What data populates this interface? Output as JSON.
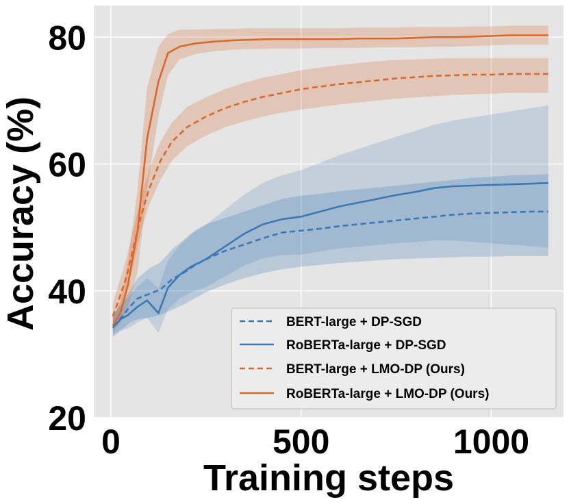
{
  "chart_data": {
    "type": "line",
    "xlabel": "Training steps",
    "ylabel": "Accuracy (%)",
    "xlim": [
      -45,
      1190
    ],
    "ylim": [
      20,
      85
    ],
    "xticks": [
      0,
      500,
      1000
    ],
    "yticks": [
      20,
      40,
      60,
      80
    ],
    "grid": true,
    "legend_position": "bottom-right",
    "series": [
      {
        "name": "BERT-large + DP-SGD",
        "color": "#3a78b5",
        "dash": "dashed",
        "x": [
          5,
          30,
          50,
          70,
          100,
          130,
          160,
          190,
          220,
          250,
          300,
          350,
          400,
          450,
          500,
          550,
          600,
          650,
          700,
          750,
          800,
          850,
          900,
          950,
          1000,
          1050,
          1100,
          1150
        ],
        "y": [
          34.5,
          36,
          37.5,
          38.8,
          39.5,
          40.2,
          41.8,
          42.8,
          44,
          45,
          46.3,
          47.3,
          48.3,
          49.2,
          49.5,
          49.8,
          50.2,
          50.5,
          50.8,
          51.1,
          51.4,
          51.7,
          52,
          52.2,
          52.3,
          52.4,
          52.5,
          52.5
        ],
        "lower": [
          33,
          34,
          35,
          35.5,
          35.8,
          36.2,
          37,
          37.8,
          38.8,
          39.8,
          41,
          42,
          42.8,
          43.4,
          43.8,
          44.1,
          44.4,
          44.6,
          44.8,
          45,
          45.1,
          45.2,
          45.3,
          45.4,
          45.4,
          45.5,
          45.5,
          45.5
        ],
        "upper": [
          36,
          38,
          40,
          42,
          43.5,
          44.5,
          46.5,
          48,
          49.5,
          50.5,
          51.5,
          52.5,
          53.5,
          54.5,
          55,
          55.3,
          55.7,
          56,
          56.3,
          56.6,
          56.9,
          57.2,
          57.5,
          57.8,
          58,
          58.2,
          58.3,
          58.4
        ]
      },
      {
        "name": "RoBERTa-large + DP-SGD",
        "color": "#3a78b5",
        "dash": "solid",
        "x": [
          5,
          25,
          45,
          70,
          95,
          125,
          150,
          180,
          210,
          250,
          300,
          350,
          400,
          450,
          500,
          550,
          600,
          650,
          700,
          750,
          800,
          850,
          900,
          950,
          1000,
          1050,
          1100,
          1150
        ],
        "y": [
          34.2,
          35.5,
          36.2,
          37.5,
          38.5,
          36.5,
          40.5,
          42.5,
          43.8,
          45,
          47,
          49,
          50.5,
          51.3,
          51.7,
          52.5,
          53.3,
          53.9,
          54.5,
          55.1,
          55.6,
          56.2,
          56.5,
          56.6,
          56.7,
          56.8,
          56.9,
          57
        ]
      },
      {
        "name": "BERT-large + LMO-DP (Ours)",
        "color": "#d9692b",
        "dash": "dashed",
        "x": [
          5,
          20,
          40,
          60,
          80,
          100,
          130,
          160,
          200,
          250,
          300,
          350,
          400,
          450,
          500,
          550,
          600,
          650,
          700,
          750,
          800,
          850,
          900,
          950,
          1000,
          1050,
          1100,
          1150
        ],
        "y": [
          36,
          38.5,
          42,
          47,
          52,
          56,
          60.5,
          63.5,
          65.8,
          67.5,
          68.8,
          69.8,
          70.6,
          71.2,
          71.8,
          72.2,
          72.6,
          72.9,
          73.2,
          73.5,
          73.7,
          73.9,
          74,
          74.1,
          74.1,
          74.2,
          74.2,
          74.2
        ],
        "lower": [
          34,
          36,
          39.5,
          44.5,
          49.5,
          53.5,
          57.5,
          60.5,
          62.8,
          64.5,
          65.8,
          66.7,
          67.5,
          68.1,
          68.6,
          69,
          69.4,
          69.7,
          70,
          70.3,
          70.5,
          70.7,
          70.9,
          71,
          71.1,
          71.2,
          71.2,
          71.2
        ],
        "upper": [
          38,
          41,
          45,
          50,
          55,
          59,
          63.5,
          66.5,
          69,
          70.5,
          71.8,
          72.8,
          73.6,
          74.2,
          74.8,
          75.2,
          75.6,
          75.9,
          76.2,
          76.4,
          76.5,
          76.6,
          76.7,
          76.7,
          76.7,
          76.7,
          76.7,
          76.7
        ]
      },
      {
        "name": "RoBERTa-large + LMO-DP (Ours)",
        "color": "#d9692b",
        "dash": "solid",
        "x": [
          5,
          25,
          45,
          70,
          95,
          125,
          150,
          180,
          220,
          270,
          320,
          370,
          420,
          480,
          540,
          600,
          650,
          700,
          750,
          800,
          850,
          900,
          950,
          1000,
          1050,
          1100,
          1150
        ],
        "y": [
          34.5,
          36.5,
          41,
          49.5,
          64,
          73,
          77.5,
          78.5,
          79,
          79.3,
          79.5,
          79.6,
          79.7,
          79.7,
          79.7,
          79.7,
          79.8,
          79.8,
          79.8,
          79.9,
          80,
          80,
          80.1,
          80.2,
          80.3,
          80.3,
          80.3
        ],
        "lower": [
          33.5,
          35,
          37.5,
          43,
          56,
          67.5,
          74,
          76.5,
          77.3,
          77.8,
          78,
          78.1,
          78.2,
          78.2,
          78.3,
          78.3,
          78.3,
          78.4,
          78.4,
          78.4,
          78.5,
          78.5,
          78.6,
          78.7,
          78.8,
          78.8,
          78.8
        ],
        "upper": [
          35.5,
          38.5,
          44.5,
          56,
          72,
          78.5,
          80.5,
          81.2,
          81.2,
          81.3,
          81.3,
          81.4,
          81.4,
          81.4,
          81.4,
          81.4,
          81.5,
          81.5,
          81.5,
          81.6,
          81.6,
          81.6,
          81.7,
          81.7,
          81.8,
          81.8,
          81.8
        ]
      }
    ]
  }
}
